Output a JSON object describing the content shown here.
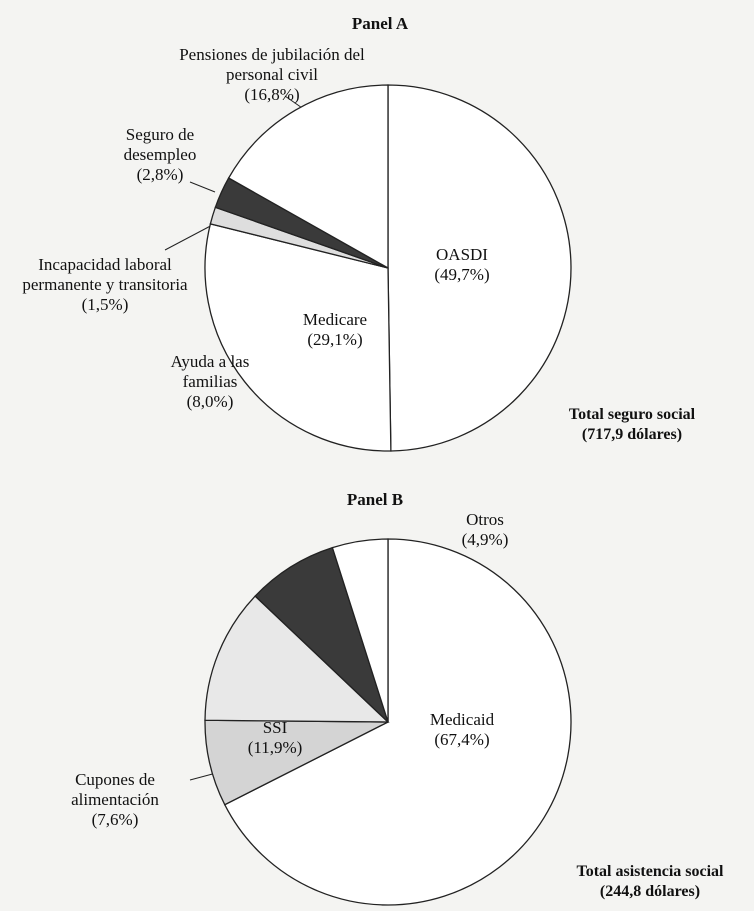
{
  "chart_data": [
    {
      "type": "pie",
      "title": "Panel A",
      "categories": [
        "OASDI",
        "Medicare",
        "Incapacidad laboral permanente y transitoria",
        "Seguro de desempleo",
        "Pensiones de jubilación del personal civil"
      ],
      "values": [
        49.7,
        29.1,
        1.5,
        2.8,
        16.8
      ],
      "value_labels": [
        "(49,7%)",
        "(29,1%)",
        "(1,5%)",
        "(2,8%)",
        "(16,8%)"
      ],
      "colors": [
        "#ffffff",
        "#ffffff",
        "#dedede",
        "#3a3a3a",
        "#ffffff"
      ],
      "total_label": "Total seguro social",
      "total_amount": "(717,9 dólares)"
    },
    {
      "type": "pie",
      "title": "Panel B",
      "categories": [
        "Medicaid",
        "Cupones de alimentación",
        "SSI",
        "Ayuda a las familias",
        "Otros"
      ],
      "values": [
        67.4,
        7.6,
        11.9,
        8.0,
        4.9
      ],
      "value_labels": [
        "(67,4%)",
        "(7,6%)",
        "(11,9%)",
        "(8,0%)",
        "(4,9%)"
      ],
      "colors": [
        "#ffffff",
        "#d4d4d4",
        "#e8e8e8",
        "#3a3a3a",
        "#ffffff"
      ],
      "total_label": "Total asistencia social",
      "total_amount": "(244,8 dólares)"
    }
  ]
}
